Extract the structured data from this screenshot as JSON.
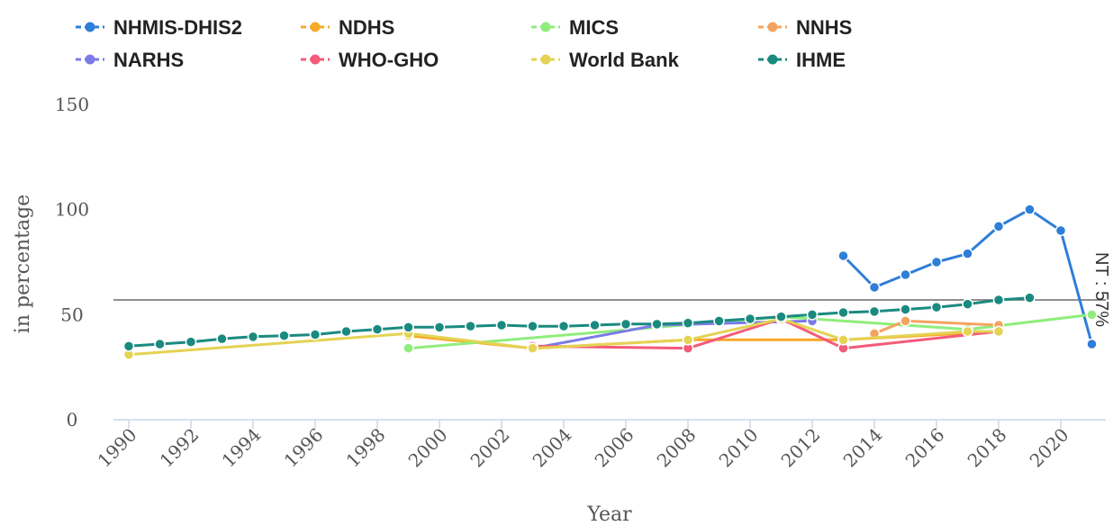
{
  "chart_data": {
    "type": "line",
    "xlabel": "Year",
    "ylabel": "in percentage",
    "xlim": [
      1990,
      2021
    ],
    "ylim": [
      0,
      150
    ],
    "yticks": [
      0,
      50,
      100,
      150
    ],
    "xticks": [
      1990,
      1992,
      1994,
      1996,
      1998,
      2000,
      2002,
      2004,
      2006,
      2008,
      2010,
      2012,
      2014,
      2016,
      2018,
      2020
    ],
    "target": {
      "value": 57,
      "label": "NT : 57%"
    },
    "legend_position": "top",
    "series": [
      {
        "name": "NHMIS-DHIS2",
        "color": "#2f7ed8",
        "points": [
          [
            2013,
            78
          ],
          [
            2014,
            63
          ],
          [
            2015,
            69
          ],
          [
            2016,
            75
          ],
          [
            2017,
            79
          ],
          [
            2018,
            92
          ],
          [
            2019,
            100
          ],
          [
            2020,
            90
          ],
          [
            2021,
            36
          ]
        ]
      },
      {
        "name": "NDHS",
        "color": "#f7a928",
        "points": [
          [
            1999,
            40
          ],
          [
            2003,
            34
          ],
          [
            2008,
            38
          ],
          [
            2013,
            38
          ],
          [
            2018,
            42
          ]
        ]
      },
      {
        "name": "MICS",
        "color": "#90ed7d",
        "points": [
          [
            1999,
            34
          ],
          [
            2011,
            49
          ],
          [
            2017,
            43
          ],
          [
            2021,
            50
          ]
        ]
      },
      {
        "name": "NNHS",
        "color": "#f4a460",
        "points": [
          [
            2014,
            41
          ],
          [
            2015,
            47
          ],
          [
            2018,
            45
          ]
        ]
      },
      {
        "name": "NARHS",
        "color": "#7b7be8",
        "points": [
          [
            2003,
            34
          ],
          [
            2007,
            45
          ],
          [
            2012,
            47
          ]
        ]
      },
      {
        "name": "WHO-GHO",
        "color": "#f45b7a",
        "points": [
          [
            2003,
            35
          ],
          [
            2008,
            34
          ],
          [
            2011,
            48
          ],
          [
            2013,
            34
          ],
          [
            2018,
            42
          ]
        ]
      },
      {
        "name": "World Bank",
        "color": "#e4d354",
        "points": [
          [
            1990,
            31
          ],
          [
            1999,
            41
          ],
          [
            2003,
            34
          ],
          [
            2008,
            38
          ],
          [
            2011,
            48
          ],
          [
            2013,
            38
          ],
          [
            2017,
            42
          ],
          [
            2018,
            42
          ]
        ]
      },
      {
        "name": "IHME",
        "color": "#1a8a80",
        "points": [
          [
            1990,
            35
          ],
          [
            1991,
            36
          ],
          [
            1992,
            37
          ],
          [
            1993,
            38.5
          ],
          [
            1994,
            39.5
          ],
          [
            1995,
            40
          ],
          [
            1996,
            40.5
          ],
          [
            1997,
            42
          ],
          [
            1998,
            43
          ],
          [
            1999,
            44
          ],
          [
            2000,
            44
          ],
          [
            2001,
            44.5
          ],
          [
            2002,
            45
          ],
          [
            2003,
            44.5
          ],
          [
            2004,
            44.5
          ],
          [
            2005,
            45
          ],
          [
            2006,
            45.5
          ],
          [
            2007,
            45.5
          ],
          [
            2008,
            46
          ],
          [
            2009,
            47
          ],
          [
            2010,
            48
          ],
          [
            2011,
            49
          ],
          [
            2012,
            50
          ],
          [
            2013,
            51
          ],
          [
            2014,
            51.5
          ],
          [
            2015,
            52.5
          ],
          [
            2016,
            53.5
          ],
          [
            2017,
            55
          ],
          [
            2018,
            57
          ],
          [
            2019,
            58
          ]
        ]
      }
    ]
  }
}
